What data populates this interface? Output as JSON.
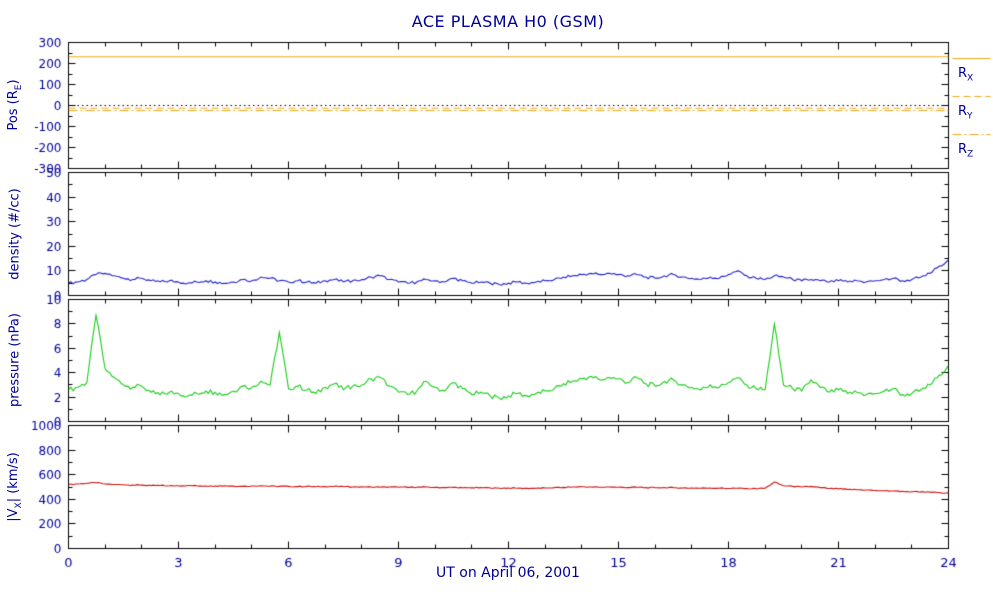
{
  "chart_data": {
    "type": "line",
    "title": "ACE PLASMA H0 (GSM)",
    "xlabel": "UT on April 06, 2001",
    "text_color": "#000099",
    "axis_color": "#000000",
    "x_range": [
      0,
      24
    ],
    "x_ticks": [
      0,
      3,
      6,
      9,
      12,
      15,
      18,
      21,
      24
    ],
    "x_minor_step": 1,
    "x_start": 0,
    "x_step": 0.25,
    "panels": [
      {
        "name": "position",
        "ylabel": "Pos (R_E)",
        "ylabel_parts": {
          "pre": "Pos (R",
          "sub": "E",
          "post": ")"
        },
        "ylim": [
          -300,
          300
        ],
        "yticks": [
          -300,
          -200,
          -100,
          0,
          100,
          200,
          300
        ],
        "kind": "hlines",
        "lines": [
          {
            "name": "R_X",
            "style": "solid",
            "value": 232,
            "color": "#F2A71B"
          },
          {
            "name": "R_Y",
            "style": "dashed",
            "value": -13,
            "color": "#F2A71B"
          },
          {
            "name": "R_Z",
            "style": "dashdot",
            "value": -24,
            "color": "#F2A71B"
          }
        ],
        "zero_line": {
          "value": 0,
          "color": "#000000",
          "style": "dotted"
        }
      },
      {
        "name": "density",
        "ylabel": "density (#/cc)",
        "ylabel_parts": {
          "pre": "density (#/cc)",
          "sub": "",
          "post": ""
        },
        "ylim": [
          0,
          50
        ],
        "yticks": [
          0,
          10,
          20,
          30,
          40,
          50
        ],
        "kind": "series",
        "color": "#2222CC",
        "noise": 0.6,
        "values": [
          5.0,
          5.5,
          6.5,
          8.5,
          9.0,
          8.0,
          7.0,
          6.5,
          7.0,
          6.0,
          5.5,
          6.0,
          5.5,
          5.0,
          5.5,
          6.0,
          5.5,
          5.0,
          5.5,
          6.5,
          6.0,
          7.5,
          7.0,
          6.0,
          5.5,
          6.0,
          5.5,
          5.0,
          6.0,
          6.5,
          5.5,
          6.0,
          6.5,
          7.5,
          8.0,
          6.5,
          5.5,
          5.0,
          5.5,
          6.5,
          6.0,
          5.5,
          7.0,
          6.0,
          5.0,
          5.5,
          5.0,
          4.5,
          5.0,
          5.5,
          5.0,
          5.5,
          6.0,
          6.5,
          7.5,
          8.0,
          8.5,
          9.0,
          8.5,
          9.0,
          8.5,
          8.0,
          8.5,
          7.5,
          7.0,
          8.0,
          8.5,
          7.5,
          7.0,
          6.5,
          7.5,
          7.0,
          8.5,
          10.0,
          8.0,
          7.0,
          6.5,
          8.0,
          7.5,
          6.5,
          6.0,
          6.5,
          6.0,
          5.5,
          6.0,
          5.5,
          6.0,
          5.5,
          6.0,
          6.5,
          7.0,
          6.0,
          6.5,
          7.5,
          9.0,
          12.0,
          14.5
        ]
      },
      {
        "name": "pressure",
        "ylabel": "pressure (nPa)",
        "ylabel_parts": {
          "pre": "pressure (nPa)",
          "sub": "",
          "post": ""
        },
        "ylim": [
          0,
          10
        ],
        "yticks": [
          0,
          2,
          4,
          6,
          8,
          10
        ],
        "kind": "series",
        "color": "#19CC19",
        "noise": 0.2,
        "values": [
          2.6,
          2.8,
          3.2,
          8.7,
          4.3,
          3.6,
          3.0,
          2.8,
          2.9,
          2.4,
          2.2,
          2.4,
          2.3,
          2.1,
          2.3,
          2.5,
          2.4,
          2.2,
          2.5,
          2.9,
          2.8,
          3.3,
          3.0,
          7.3,
          2.7,
          2.9,
          2.6,
          2.3,
          2.8,
          3.1,
          2.6,
          2.9,
          3.0,
          3.5,
          3.6,
          2.9,
          2.4,
          2.2,
          2.5,
          3.3,
          2.8,
          2.5,
          3.2,
          2.7,
          2.2,
          2.4,
          2.1,
          1.9,
          2.1,
          2.3,
          2.1,
          2.3,
          2.5,
          2.7,
          3.1,
          3.3,
          3.5,
          3.7,
          3.4,
          3.6,
          3.5,
          3.2,
          3.6,
          3.1,
          2.9,
          3.3,
          3.4,
          3.0,
          2.8,
          2.6,
          3.0,
          2.8,
          3.2,
          3.6,
          3.0,
          2.7,
          2.6,
          8.0,
          3.0,
          2.7,
          2.5,
          3.4,
          2.8,
          2.4,
          2.6,
          2.3,
          2.4,
          2.2,
          2.3,
          2.5,
          2.7,
          2.2,
          2.3,
          2.6,
          3.0,
          3.8,
          4.6
        ]
      },
      {
        "name": "velocity",
        "ylabel": "|V_X| (km/s)",
        "ylabel_parts": {
          "pre": "|V",
          "sub": "X",
          "post": "| (km/s)"
        },
        "ylim": [
          0,
          1000
        ],
        "yticks": [
          0,
          200,
          400,
          600,
          800,
          1000
        ],
        "kind": "series",
        "color": "#CC1111",
        "noise": 4,
        "values": [
          520,
          525,
          530,
          535,
          525,
          520,
          518,
          515,
          515,
          512,
          512,
          510,
          510,
          512,
          510,
          508,
          508,
          510,
          507,
          505,
          508,
          510,
          507,
          505,
          505,
          503,
          505,
          502,
          503,
          505,
          502,
          500,
          502,
          500,
          498,
          500,
          498,
          497,
          498,
          500,
          497,
          495,
          497,
          494,
          493,
          495,
          492,
          490,
          492,
          490,
          489,
          490,
          492,
          495,
          497,
          500,
          502,
          500,
          498,
          500,
          498,
          496,
          498,
          495,
          494,
          496,
          495,
          492,
          492,
          490,
          492,
          490,
          488,
          490,
          488,
          487,
          490,
          540,
          510,
          505,
          500,
          505,
          495,
          488,
          485,
          480,
          478,
          475,
          472,
          470,
          468,
          465,
          462,
          460,
          458,
          455,
          452
        ]
      }
    ],
    "legend": [
      {
        "pre": "R",
        "sub": "X",
        "style": "solid",
        "color": "#F2A71B"
      },
      {
        "pre": "R",
        "sub": "Y",
        "style": "dashed",
        "color": "#F2A71B"
      },
      {
        "pre": "R",
        "sub": "Z",
        "style": "dashdot",
        "color": "#F2A71B"
      }
    ]
  }
}
